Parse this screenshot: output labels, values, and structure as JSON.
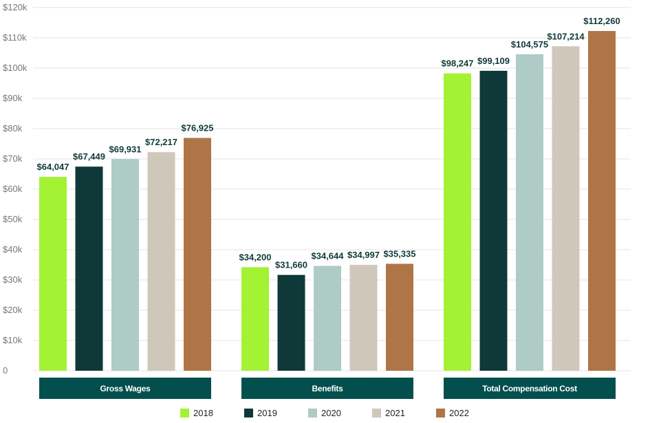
{
  "chart_data": {
    "type": "bar",
    "categories": [
      "Gross Wages",
      "Benefits",
      "Total Compensation Cost"
    ],
    "series": [
      {
        "name": "2018",
        "color": "#a3f233",
        "values": [
          64047,
          34200,
          98247
        ],
        "labels": [
          "$64,047",
          "$34,200",
          "$98,247"
        ]
      },
      {
        "name": "2019",
        "color": "#0f3938",
        "values": [
          67449,
          31660,
          99109
        ],
        "labels": [
          "$67,449",
          "$31,660",
          "$99,109"
        ]
      },
      {
        "name": "2020",
        "color": "#aecbc5",
        "values": [
          69931,
          34644,
          104575
        ],
        "labels": [
          "$69,931",
          "$34,644",
          "$104,575"
        ]
      },
      {
        "name": "2021",
        "color": "#d0c7bb",
        "values": [
          72217,
          34997,
          107214
        ],
        "labels": [
          "$72,217",
          "$34,997",
          "$107,214"
        ]
      },
      {
        "name": "2022",
        "color": "#b07547",
        "values": [
          76925,
          35335,
          112260
        ],
        "labels": [
          "$76,925",
          "$35,335",
          "$112,260"
        ]
      }
    ],
    "yticks": [
      0,
      10000,
      20000,
      30000,
      40000,
      50000,
      60000,
      70000,
      80000,
      90000,
      100000,
      110000,
      120000
    ],
    "ytick_labels": [
      "0",
      "$10k",
      "$20k",
      "$30k",
      "$40k",
      "$50k",
      "$60k",
      "$70k",
      "$80k",
      "$90k",
      "$100k",
      "$110k",
      "$120k"
    ],
    "ylim": [
      0,
      120000
    ],
    "grid": true,
    "legend_position": "bottom",
    "category_box_color": "#024f4d"
  }
}
